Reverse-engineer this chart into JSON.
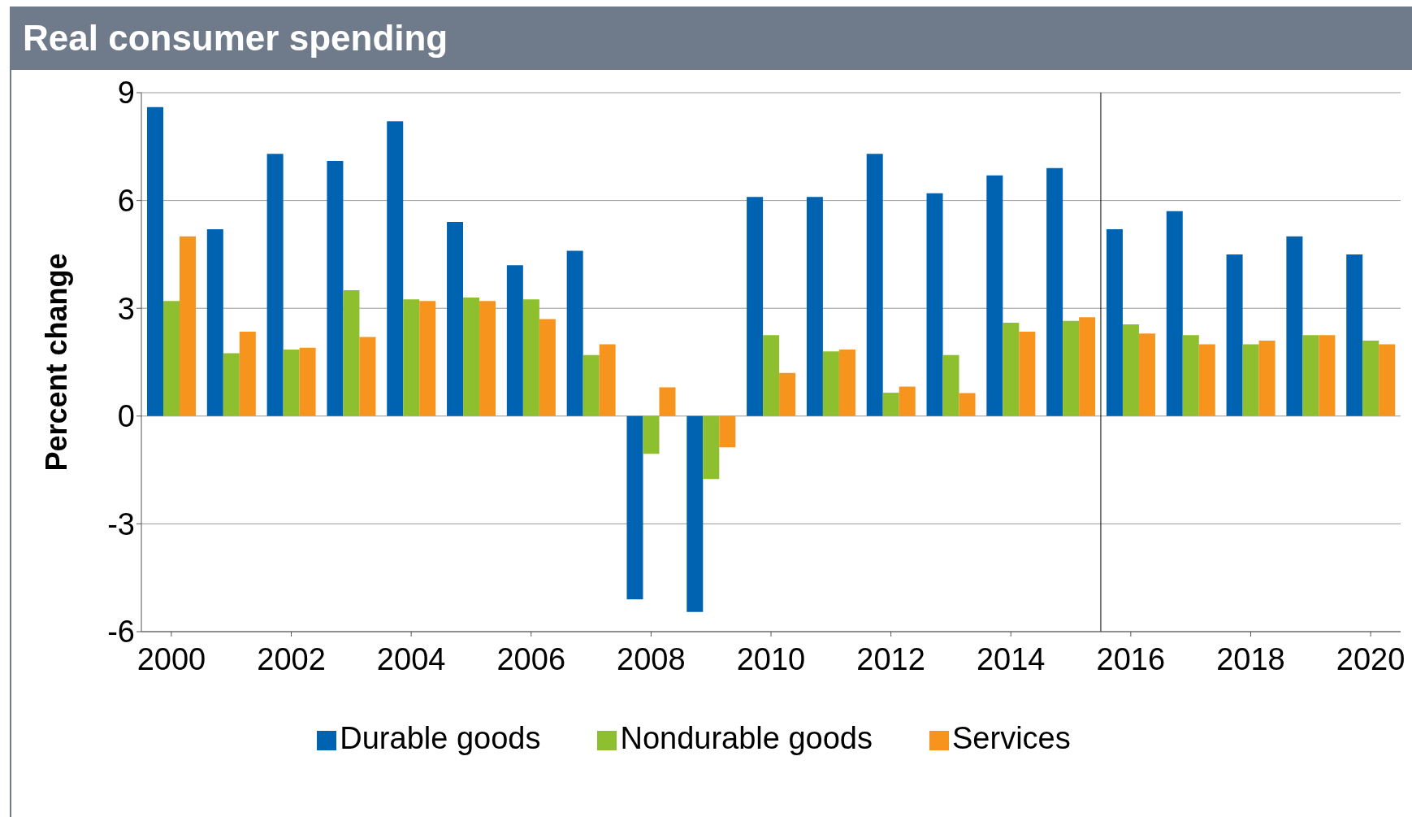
{
  "chart_data": {
    "type": "bar",
    "title": "Real consumer spending",
    "ylabel": "Percent change",
    "x": [
      2000,
      2001,
      2002,
      2003,
      2004,
      2005,
      2006,
      2007,
      2008,
      2009,
      2010,
      2011,
      2012,
      2013,
      2014,
      2015,
      2016,
      2017,
      2018,
      2019,
      2020
    ],
    "xlim": [
      1999.5,
      2020.5
    ],
    "xticks": [
      2000,
      2002,
      2004,
      2006,
      2008,
      2010,
      2012,
      2014,
      2016,
      2018,
      2020
    ],
    "ylim": [
      -6,
      9
    ],
    "yticks": [
      -6,
      -3,
      0,
      3,
      6,
      9
    ],
    "grid": "y",
    "legend": "bottom",
    "ref_lines": [
      {
        "axis": "x",
        "value": 2015.5,
        "color": "#000000"
      }
    ],
    "series": [
      {
        "name": "Durable goods",
        "color": "#0063b1",
        "values": [
          8.6,
          5.2,
          7.3,
          7.1,
          8.2,
          5.4,
          4.2,
          4.6,
          -5.1,
          -5.45,
          6.1,
          6.1,
          7.3,
          6.2,
          6.7,
          6.9,
          5.2,
          5.7,
          4.5,
          5.0,
          4.5
        ]
      },
      {
        "name": "Nondurable goods",
        "color": "#8dbf2f",
        "values": [
          3.2,
          1.75,
          1.85,
          3.5,
          3.25,
          3.3,
          3.25,
          1.7,
          -1.05,
          -1.75,
          2.25,
          1.8,
          0.65,
          1.7,
          2.6,
          2.65,
          2.55,
          2.25,
          2.0,
          2.25,
          2.1
        ]
      },
      {
        "name": "Services",
        "color": "#f7941d",
        "values": [
          5.0,
          2.35,
          1.9,
          2.2,
          3.2,
          3.2,
          2.7,
          2.0,
          0.8,
          -0.87,
          1.2,
          1.85,
          0.82,
          0.64,
          2.35,
          2.75,
          2.3,
          2.0,
          2.1,
          2.25,
          2.0
        ]
      }
    ]
  }
}
